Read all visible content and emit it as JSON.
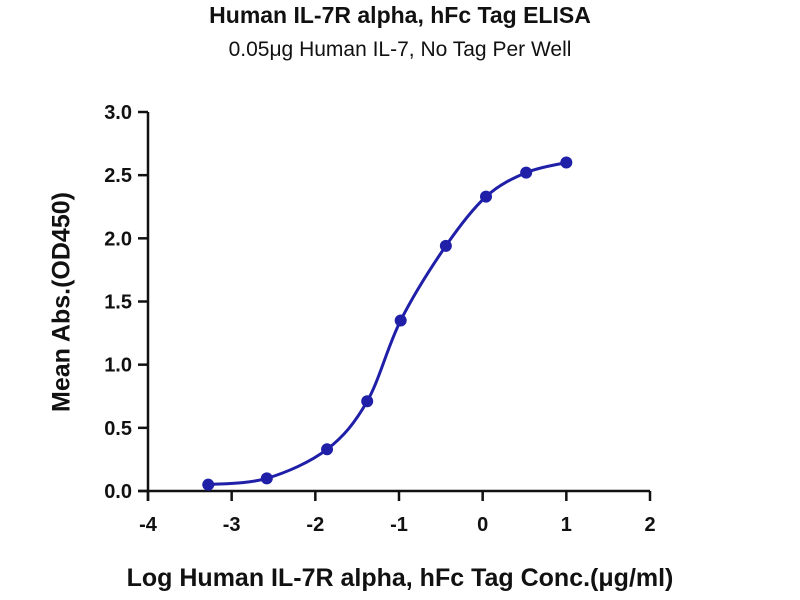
{
  "chart_data": {
    "type": "scatter",
    "title": "Human IL-7R alpha, hFc Tag ELISA",
    "subtitle": "0.05μg Human IL-7, No Tag Per Well",
    "xlabel": "Log Human IL-7R alpha, hFc Tag Conc.(μg/ml)",
    "ylabel": "Mean Abs.(OD450)",
    "xlim": [
      -4,
      2
    ],
    "ylim": [
      0,
      3.0
    ],
    "xticks": [
      "-4",
      "-3",
      "-2",
      "-1",
      "0",
      "1",
      "2"
    ],
    "yticks": [
      "0.0",
      "0.5",
      "1.0",
      "1.5",
      "2.0",
      "2.5",
      "3.0"
    ],
    "grid": false,
    "fit": "sigmoidal",
    "series": [
      {
        "color": "#1f1fa8",
        "x": [
          -3.28,
          -2.58,
          -1.86,
          -1.38,
          -0.98,
          -0.44,
          0.04,
          0.52,
          1.0
        ],
        "y": [
          0.05,
          0.1,
          0.33,
          0.71,
          1.35,
          1.94,
          2.33,
          2.52,
          2.6
        ]
      }
    ]
  }
}
